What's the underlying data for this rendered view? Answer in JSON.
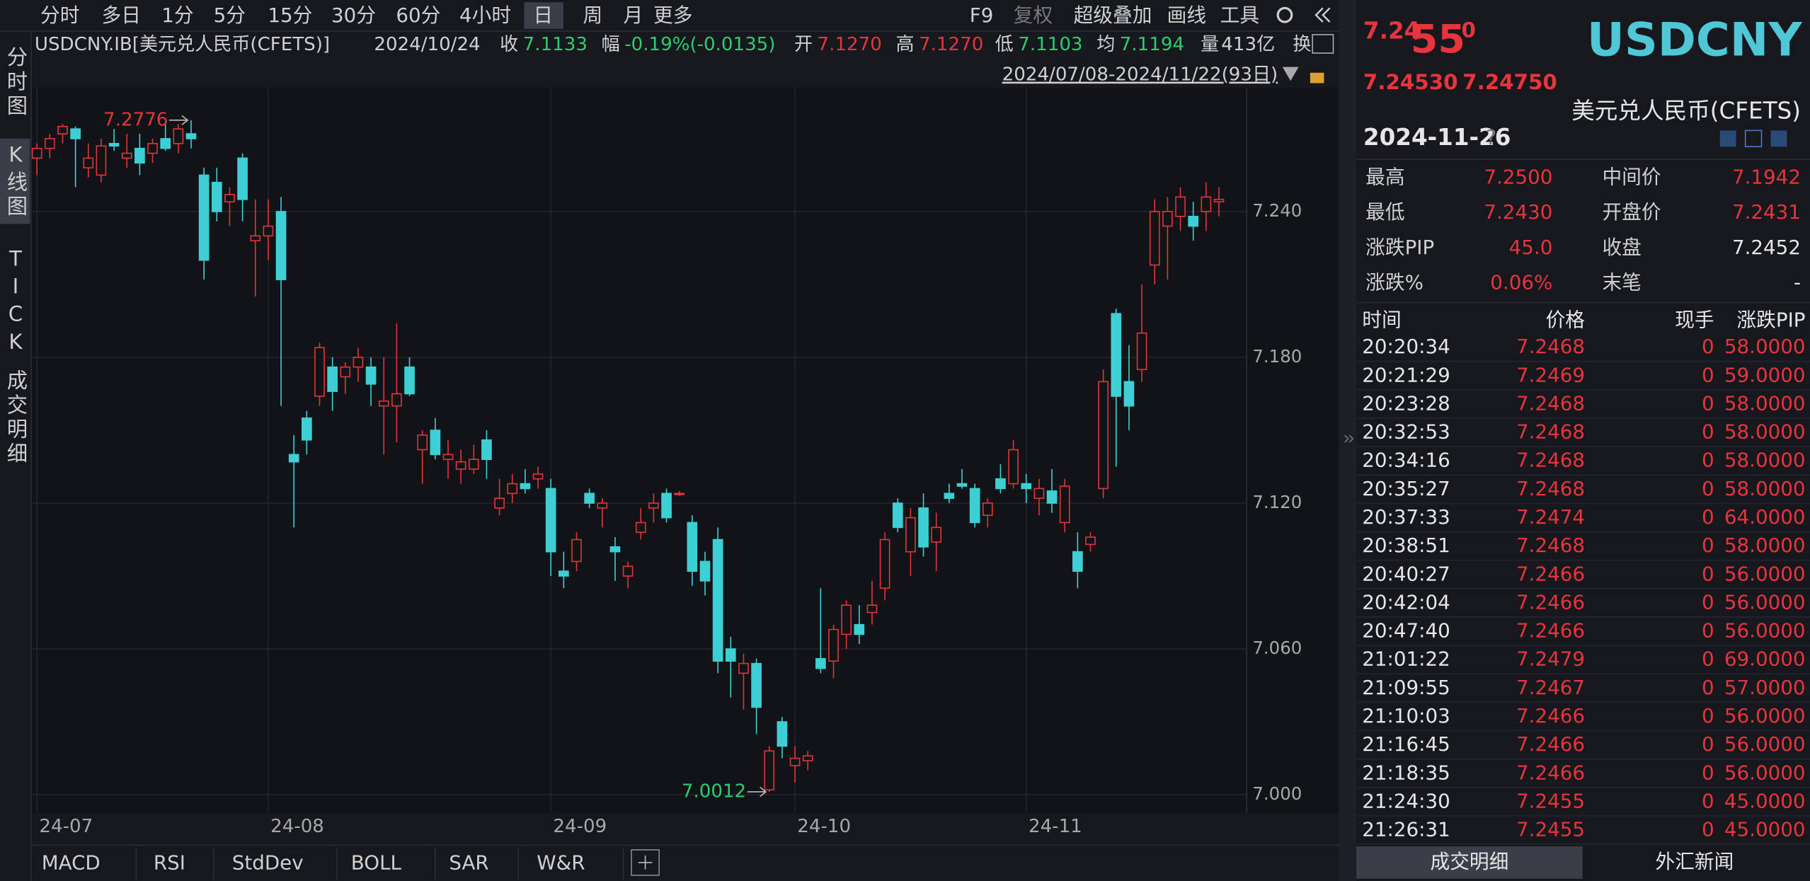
{
  "toolbar": {
    "periods": [
      "分时",
      "多日",
      "1分",
      "5分",
      "15分",
      "30分",
      "60分",
      "4小时",
      "日",
      "周",
      "月",
      "更多"
    ],
    "active": 8,
    "tools": [
      "F9",
      "复权",
      "超级叠加",
      "画线",
      "工具"
    ]
  },
  "info": {
    "symbol": "USDCNY.IB[美元兑人民币(CFETS)]",
    "date": "2024/10/24",
    "close_label": "收",
    "close": "7.1133",
    "change_label": "幅",
    "change": "-0.19%(-0.0135)",
    "open_label": "开",
    "open": "7.1270",
    "high_label": "高",
    "high": "7.1270",
    "low_label": "低",
    "low": "7.1103",
    "avg_label": "均",
    "avg": "7.1194",
    "vol_label": "量",
    "vol": "413亿",
    "switch": "换",
    "range": "2024/07/08-2024/11/22(93日)"
  },
  "left_tabs": [
    "分时图",
    "K线图",
    "TICK",
    "成交明细"
  ],
  "left_active": 1,
  "chart_data": {
    "type": "candlestick",
    "grid": true,
    "up_color": "#e0343c",
    "down_color": "#3dcfd3",
    "categories": [
      "24-07",
      null,
      null,
      null,
      null,
      null,
      null,
      null,
      null,
      null,
      null,
      null,
      null,
      null,
      null,
      null,
      null,
      null,
      "24-08",
      null,
      null,
      null,
      null,
      null,
      null,
      null,
      null,
      null,
      null,
      null,
      null,
      null,
      null,
      null,
      null,
      null,
      null,
      null,
      null,
      null,
      "24-09",
      null,
      null,
      null,
      null,
      null,
      null,
      null,
      null,
      null,
      null,
      null,
      null,
      null,
      null,
      null,
      null,
      null,
      null,
      "24-10",
      null,
      null,
      null,
      null,
      null,
      null,
      null,
      null,
      null,
      null,
      null,
      null,
      null,
      null,
      null,
      null,
      null,
      "24-11",
      null,
      null,
      null,
      null,
      null,
      null,
      null,
      null,
      null,
      null,
      null,
      null,
      null,
      null,
      null
    ],
    "open": [
      7.262,
      7.266,
      7.272,
      7.274,
      7.258,
      7.255,
      7.268,
      7.262,
      7.266,
      7.264,
      7.27,
      7.268,
      7.272,
      7.255,
      7.252,
      7.244,
      7.262,
      7.228,
      7.23,
      7.24,
      7.14,
      7.155,
      7.164,
      7.176,
      7.172,
      7.176,
      7.176,
      7.16,
      7.16,
      7.176,
      7.142,
      7.15,
      7.138,
      7.134,
      7.134,
      7.146,
      7.118,
      7.124,
      7.128,
      7.13,
      7.126,
      7.092,
      7.096,
      7.124,
      7.118,
      7.102,
      7.09,
      7.108,
      7.118,
      7.124,
      7.124,
      7.112,
      7.096,
      7.105,
      7.06,
      7.05,
      7.054,
      7.002,
      7.03,
      7.012,
      7.014,
      7.056,
      7.055,
      7.066,
      7.07,
      7.075,
      7.085,
      7.12,
      7.1,
      7.118,
      7.104,
      7.124,
      7.128,
      7.126,
      7.115,
      7.13,
      7.128,
      7.128,
      7.122,
      7.125,
      7.112,
      7.1,
      7.103,
      7.126,
      7.198,
      7.17,
      7.175,
      7.218,
      7.234,
      7.238,
      7.238,
      7.24,
      7.244
    ],
    "high": [
      7.268,
      7.272,
      7.276,
      7.275,
      7.268,
      7.27,
      7.274,
      7.272,
      7.272,
      7.27,
      7.276,
      7.276,
      7.2776,
      7.258,
      7.258,
      7.25,
      7.264,
      7.245,
      7.245,
      7.246,
      7.148,
      7.158,
      7.186,
      7.18,
      7.178,
      7.184,
      7.18,
      7.18,
      7.194,
      7.18,
      7.15,
      7.155,
      7.146,
      7.142,
      7.144,
      7.15,
      7.13,
      7.132,
      7.134,
      7.135,
      7.13,
      7.1,
      7.108,
      7.126,
      7.122,
      7.106,
      7.096,
      7.118,
      7.124,
      7.126,
      7.125,
      7.115,
      7.1,
      7.11,
      7.065,
      7.058,
      7.056,
      7.02,
      7.032,
      7.02,
      7.018,
      7.085,
      7.07,
      7.08,
      7.078,
      7.088,
      7.108,
      7.122,
      7.118,
      7.124,
      7.116,
      7.128,
      7.134,
      7.128,
      7.122,
      7.136,
      7.146,
      7.132,
      7.13,
      7.134,
      7.13,
      7.108,
      7.108,
      7.175,
      7.2,
      7.185,
      7.21,
      7.245,
      7.246,
      7.25,
      7.244,
      7.252,
      7.25
    ],
    "low": [
      7.255,
      7.262,
      7.268,
      7.25,
      7.254,
      7.252,
      7.265,
      7.258,
      7.255,
      7.26,
      7.265,
      7.264,
      7.266,
      7.212,
      7.236,
      7.234,
      7.236,
      7.205,
      7.22,
      7.16,
      7.11,
      7.14,
      7.16,
      7.158,
      7.165,
      7.17,
      7.16,
      7.14,
      7.145,
      7.164,
      7.128,
      7.138,
      7.13,
      7.128,
      7.132,
      7.13,
      7.115,
      7.12,
      7.124,
      7.126,
      7.09,
      7.085,
      7.092,
      7.118,
      7.11,
      7.088,
      7.085,
      7.105,
      7.112,
      7.112,
      7.123,
      7.086,
      7.082,
      7.05,
      7.04,
      7.035,
      7.025,
      7.0012,
      7.015,
      7.005,
      7.01,
      7.05,
      7.048,
      7.06,
      7.062,
      7.07,
      7.08,
      7.108,
      7.09,
      7.098,
      7.092,
      7.12,
      7.126,
      7.11,
      7.11,
      7.124,
      7.126,
      7.12,
      7.115,
      7.116,
      7.108,
      7.085,
      7.1,
      7.122,
      7.135,
      7.15,
      7.17,
      7.21,
      7.212,
      7.232,
      7.228,
      7.232,
      7.238
    ],
    "close": [
      7.266,
      7.27,
      7.275,
      7.27,
      7.262,
      7.267,
      7.267,
      7.264,
      7.26,
      7.268,
      7.266,
      7.274,
      7.27,
      7.22,
      7.24,
      7.247,
      7.245,
      7.23,
      7.234,
      7.212,
      7.137,
      7.146,
      7.184,
      7.166,
      7.176,
      7.18,
      7.169,
      7.162,
      7.165,
      7.165,
      7.148,
      7.14,
      7.14,
      7.137,
      7.138,
      7.138,
      7.122,
      7.128,
      7.126,
      7.132,
      7.1,
      7.09,
      7.105,
      7.12,
      7.12,
      7.1,
      7.094,
      7.112,
      7.12,
      7.114,
      7.124,
      7.092,
      7.088,
      7.055,
      7.055,
      7.054,
      7.036,
      7.018,
      7.02,
      7.015,
      7.016,
      7.052,
      7.068,
      7.078,
      7.066,
      7.078,
      7.105,
      7.11,
      7.114,
      7.102,
      7.11,
      7.122,
      7.127,
      7.112,
      7.12,
      7.126,
      7.142,
      7.126,
      7.126,
      7.12,
      7.127,
      7.092,
      7.106,
      7.17,
      7.164,
      7.16,
      7.19,
      7.24,
      7.24,
      7.246,
      7.234,
      7.246,
      7.245
    ],
    "ylim": [
      6.993,
      7.29
    ],
    "yticks": [
      {
        "value": 7.0,
        "label": "7.000"
      },
      {
        "value": 7.06,
        "label": "7.060"
      },
      {
        "value": 7.12,
        "label": "7.120"
      },
      {
        "value": 7.18,
        "label": "7.180"
      },
      {
        "value": 7.24,
        "label": "7.240"
      }
    ],
    "max_label": "7.2776",
    "min_label": "7.0012"
  },
  "bottom_tabs": [
    "MACD",
    "RSI",
    "StdDev",
    "BOLL",
    "SAR",
    "W&R"
  ],
  "right": {
    "price_a": "7.24",
    "price_b": "55",
    "price_c": "0",
    "symbol": "USDCNY",
    "bid": "7.24530",
    "ask": "7.24750",
    "name": "美元兑人民币(CFETS)",
    "date": "2024-11-26",
    "help": "?",
    "stats": [
      [
        "最高",
        "7.2500",
        "中间价",
        "7.1942"
      ],
      [
        "最低",
        "7.2430",
        "开盘价",
        "7.2431"
      ],
      [
        "涨跌PIP",
        "45.0",
        "收盘",
        "7.2452"
      ],
      [
        "涨跌%",
        "0.06%",
        "末笔",
        "-"
      ]
    ],
    "headers": [
      "时间",
      "价格",
      "现手",
      "涨跌PIP"
    ],
    "rows": [
      [
        "20:20:34",
        "7.2468",
        "0",
        "58.0000"
      ],
      [
        "20:21:29",
        "7.2469",
        "0",
        "59.0000"
      ],
      [
        "20:23:28",
        "7.2468",
        "0",
        "58.0000"
      ],
      [
        "20:32:53",
        "7.2468",
        "0",
        "58.0000"
      ],
      [
        "20:34:16",
        "7.2468",
        "0",
        "58.0000"
      ],
      [
        "20:35:27",
        "7.2468",
        "0",
        "58.0000"
      ],
      [
        "20:37:33",
        "7.2474",
        "0",
        "64.0000"
      ],
      [
        "20:38:51",
        "7.2468",
        "0",
        "58.0000"
      ],
      [
        "20:40:27",
        "7.2466",
        "0",
        "56.0000"
      ],
      [
        "20:42:04",
        "7.2466",
        "0",
        "56.0000"
      ],
      [
        "20:47:40",
        "7.2466",
        "0",
        "56.0000"
      ],
      [
        "21:01:22",
        "7.2479",
        "0",
        "69.0000"
      ],
      [
        "21:09:55",
        "7.2467",
        "0",
        "57.0000"
      ],
      [
        "21:10:03",
        "7.2466",
        "0",
        "56.0000"
      ],
      [
        "21:16:45",
        "7.2466",
        "0",
        "56.0000"
      ],
      [
        "21:18:35",
        "7.2466",
        "0",
        "56.0000"
      ],
      [
        "21:24:30",
        "7.2455",
        "0",
        "45.0000"
      ],
      [
        "21:26:31",
        "7.2455",
        "0",
        "45.0000"
      ]
    ],
    "tabs": [
      "成交明细",
      "外汇新闻"
    ]
  }
}
